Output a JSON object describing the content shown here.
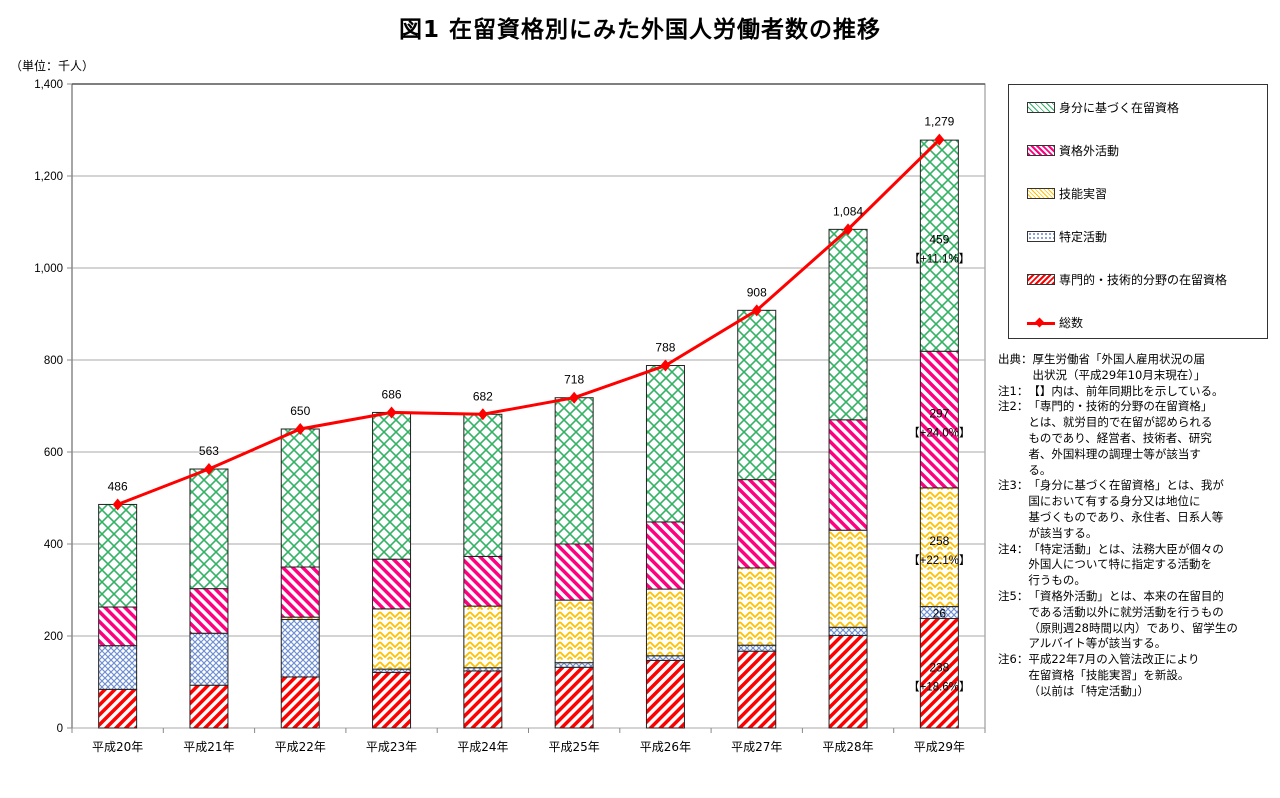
{
  "title": "図1 在留資格別にみた外国人労働者数の推移",
  "unit_label": "（単位：千人）",
  "chart_data": {
    "type": "bar",
    "stacked": true,
    "title": "図1 在留資格別にみた外国人労働者数の推移",
    "ylabel": "（単位：千人）",
    "xlabel": "",
    "ylim": [
      0,
      1400
    ],
    "yticks": [
      0,
      200,
      400,
      600,
      800,
      1000,
      1200,
      1400
    ],
    "ytick_labels": [
      "0",
      "200",
      "400",
      "600",
      "800",
      "1,000",
      "1,200",
      "1,400"
    ],
    "grid": true,
    "legend_position": "right",
    "categories": [
      "平成20年",
      "平成21年",
      "平成22年",
      "平成23年",
      "平成24年",
      "平成25年",
      "平成26年",
      "平成27年",
      "平成28年",
      "平成29年"
    ],
    "series": [
      {
        "name": "専門的・技術的分野の在留資格",
        "color": "#ff0000",
        "pattern": "diagonal",
        "values": [
          84,
          93,
          111,
          121,
          124,
          132,
          147,
          167,
          201,
          238
        ]
      },
      {
        "name": "特定活動",
        "color": "#6f8fd0",
        "pattern": "dots",
        "values": [
          95,
          113,
          125,
          7,
          7,
          10,
          10,
          13,
          18,
          26
        ]
      },
      {
        "name": "技能実習",
        "color": "#ffc000",
        "pattern": "zigzag",
        "values": [
          0,
          0,
          5,
          131,
          134,
          136,
          145,
          168,
          211,
          258
        ]
      },
      {
        "name": "資格外活動",
        "color": "#ff0080",
        "pattern": "diagonal",
        "values": [
          84,
          97,
          109,
          108,
          108,
          122,
          146,
          192,
          240,
          297
        ]
      },
      {
        "name": "身分に基づく在留資格",
        "color": "#33b266",
        "pattern": "cross",
        "values": [
          223,
          260,
          300,
          319,
          309,
          318,
          340,
          368,
          414,
          459
        ]
      }
    ],
    "line": {
      "name": "総数",
      "color": "#ff0000",
      "values": [
        486,
        563,
        650,
        686,
        682,
        718,
        788,
        908,
        1084,
        1279
      ],
      "labels": [
        "486",
        "563",
        "650",
        "686",
        "682",
        "718",
        "788",
        "908",
        "1,084",
        "1,279"
      ]
    },
    "annotations": [
      {
        "category": "平成29年",
        "series": "身分に基づく在留資格",
        "value": "459",
        "change": "【+11.1%】"
      },
      {
        "category": "平成29年",
        "series": "資格外活動",
        "value": "297",
        "change": "【+24.0%】"
      },
      {
        "category": "平成29年",
        "series": "技能実習",
        "value": "258",
        "change": "【+22.1%】"
      },
      {
        "category": "平成29年",
        "series": "特定活動",
        "value": "26",
        "change": ""
      },
      {
        "category": "平成29年",
        "series": "専門的・技術的分野の在留資格",
        "value": "238",
        "change": "【+18.6%】"
      }
    ]
  },
  "legend": [
    {
      "label": "身分に基づく在留資格",
      "color": "#33b266",
      "pattern": "cross"
    },
    {
      "label": "資格外活動",
      "color": "#ff0080",
      "pattern": "diagonal"
    },
    {
      "label": "技能実習",
      "color": "#ffc000",
      "pattern": "zigzag"
    },
    {
      "label": "特定活動",
      "color": "#6f8fd0",
      "pattern": "dots"
    },
    {
      "label": "専門的・技術的分野の在留資格",
      "color": "#ff0000",
      "pattern": "diagonal"
    },
    {
      "label": "総数",
      "color": "#ff0000",
      "pattern": "line"
    }
  ],
  "notes": [
    {
      "label": "出典：",
      "text": "厚生労働省「外国人雇用状況の届\n出状況（平成29年10月末現在）」"
    },
    {
      "label": "注1：",
      "text": "【】内は、前年同期比を示している。"
    },
    {
      "label": "注2：",
      "text": "「専門的・技術的分野の在留資格」\nとは、就労目的で在留が認められる\nものであり、経営者、技術者、研究\n者、外国料理の調理士等が該当す\nる。"
    },
    {
      "label": "注3：",
      "text": "「身分に基づく在留資格」とは、我が\n国において有する身分又は地位に\n基づくものであり、永住者、日系人等\nが該当する。"
    },
    {
      "label": "注4：",
      "text": "「特定活動」とは、法務大臣が個々の\n外国人について特に指定する活動を\n行うもの。"
    },
    {
      "label": "注5：",
      "text": "「資格外活動」とは、本来の在留目的\nである活動以外に就労活動を行うもの\n（原則週28時間以内）であり、留学生の\nアルバイト等が該当する。"
    },
    {
      "label": "注6：",
      "text": "平成22年7月の入管法改正により\n在留資格「技能実習」を新設。\n（以前は「特定活動」）"
    }
  ]
}
